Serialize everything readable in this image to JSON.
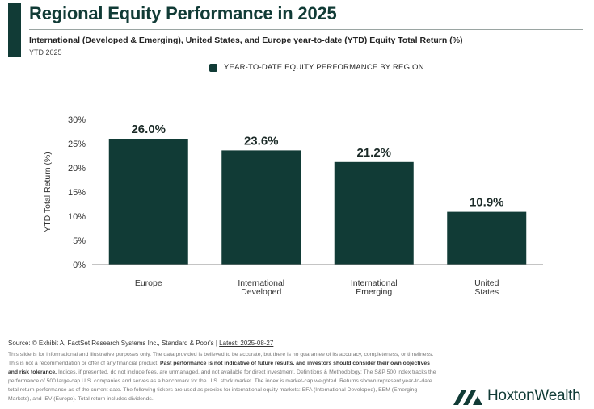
{
  "header": {
    "title": "Regional Equity Performance in 2025",
    "subtitle": "International (Developed & Emerging), United States, and Europe year-to-date (YTD) Equity Total Return (%)",
    "period": "YTD 2025"
  },
  "colors": {
    "brand": "#113b36",
    "axis": "#888888"
  },
  "chart_data": {
    "type": "bar",
    "categories": [
      [
        "Europe"
      ],
      [
        "International",
        "Developed"
      ],
      [
        "International",
        "Emerging"
      ],
      [
        "United",
        "States"
      ]
    ],
    "series": [
      {
        "name": "YEAR-TO-DATE EQUITY PERFORMANCE BY REGION",
        "values": [
          26.0,
          23.6,
          21.2,
          10.9
        ]
      }
    ],
    "data_labels": [
      "26.0%",
      "23.6%",
      "21.2%",
      "10.9%"
    ],
    "ylabel": "YTD Total Return (%)",
    "ylim": [
      0,
      30
    ],
    "yticks": [
      0,
      5,
      10,
      15,
      20,
      25,
      30
    ],
    "ytick_labels": [
      "0%",
      "5%",
      "10%",
      "15%",
      "20%",
      "25%",
      "30%"
    ],
    "legend_position": "top-center",
    "grid": false
  },
  "footer": {
    "source_prefix": "Source: © Exhibit A, FactSet Research Systems Inc., Standard & Poor's | ",
    "source_link": "Latest: 2025-08-27",
    "disclaimer_1": "This slide is for informational and illustrative purposes only. The data provided is believed to be accurate, but there is no guarantee of its accuracy, completeness, or timeliness. This is not a recommendation or offer of any financial product. ",
    "disclaimer_bold": "Past performance is not indicative of future results, and investors should consider their own objectives and risk tolerance.",
    "disclaimer_2": " Indices, if presented, do not include fees, are unmanaged, and not available for direct investment. Definitions & Methodology: The S&P 500 index tracks the performance of 500 large-cap U.S. companies and serves as a benchmark for the U.S. stock market. The index is market-cap weighted. Returns shown represent year-to-date total return performance as of the current date. The following tickers are used as proxies for international equity markets: EFA (International Developed), EEM (Emerging Markets), and IEV (Europe). Total return includes dividends."
  },
  "brand": {
    "name": "HoxtonWealth",
    "logo_icon": "hoxton-logo-icon"
  }
}
